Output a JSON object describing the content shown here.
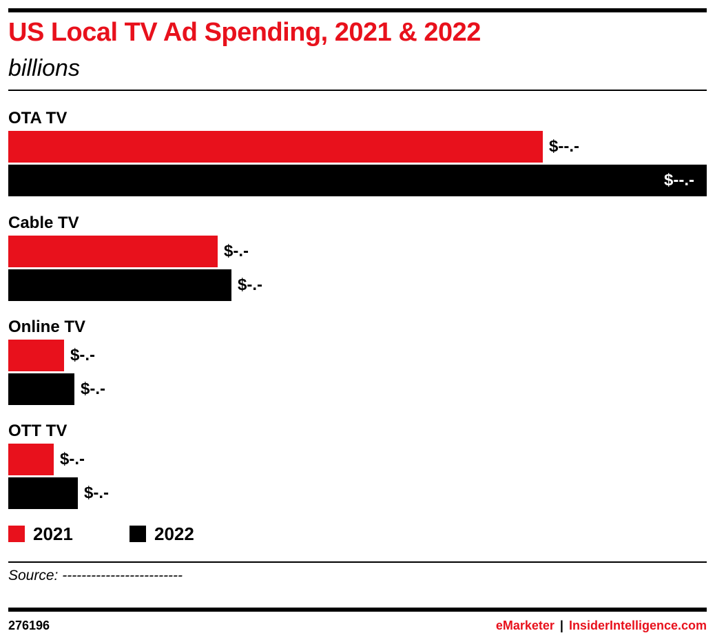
{
  "header": {
    "title": "US Local TV Ad Spending, 2021 & 2022",
    "subtitle": "billions"
  },
  "chart_data": {
    "type": "bar",
    "orientation": "horizontal",
    "title": "US Local TV Ad Spending, 2021 & 2022",
    "subtitle": "billions",
    "categories": [
      "OTA TV",
      "Cable TV",
      "Online TV",
      "OTT TV"
    ],
    "series": [
      {
        "name": "2021",
        "color": "#e8111c",
        "values": [
          15.3,
          6.0,
          1.6,
          1.3
        ],
        "value_labels": [
          "$--.-",
          "$-.-",
          "$-.-",
          "$-.-"
        ]
      },
      {
        "name": "2022",
        "color": "#000000",
        "values": [
          20.0,
          6.4,
          1.9,
          2.0
        ],
        "value_labels": [
          "$--.-",
          "$-.-",
          "$-.-",
          "$-.-"
        ]
      }
    ],
    "xlim": [
      0,
      20.0
    ],
    "grid": false,
    "legend_position": "bottom-left"
  },
  "legend": [
    {
      "label": "2021",
      "color": "#e8111c"
    },
    {
      "label": "2022",
      "color": "#000000"
    }
  ],
  "footer": {
    "source": "Source: -------------------------",
    "chart_id": "276196",
    "brand_left": "eMarketer",
    "brand_sep": "|",
    "brand_right": "InsiderIntelligence.com"
  }
}
